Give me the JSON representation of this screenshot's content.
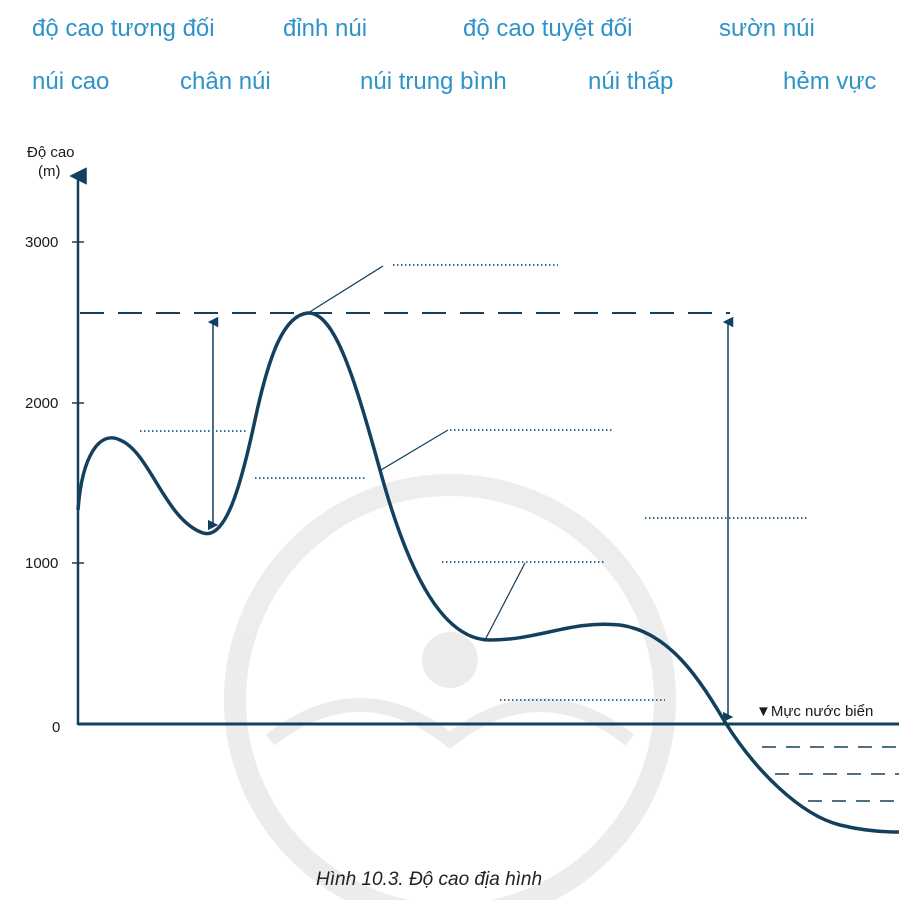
{
  "word_bank": [
    "độ cao tương đối",
    "đỉnh núi",
    "độ cao tuyệt đối",
    "sườn núi",
    "núi cao",
    "chân núi",
    "núi trung bình",
    "núi thấp",
    "hẻm vực"
  ],
  "diagram": {
    "y_axis_label_line1": "Độ cao",
    "y_axis_label_line2": "(m)",
    "ticks": [
      "3000",
      "2000",
      "1000",
      "0"
    ],
    "sea_level_label": "▼Mực nước biển",
    "caption": "Hình 10.3. Độ cao địa hình",
    "colors": {
      "terrain": "#13405e",
      "axis": "#13405e",
      "word_bank": "#2f93c9",
      "blank_dots": "#3a6f97"
    }
  }
}
